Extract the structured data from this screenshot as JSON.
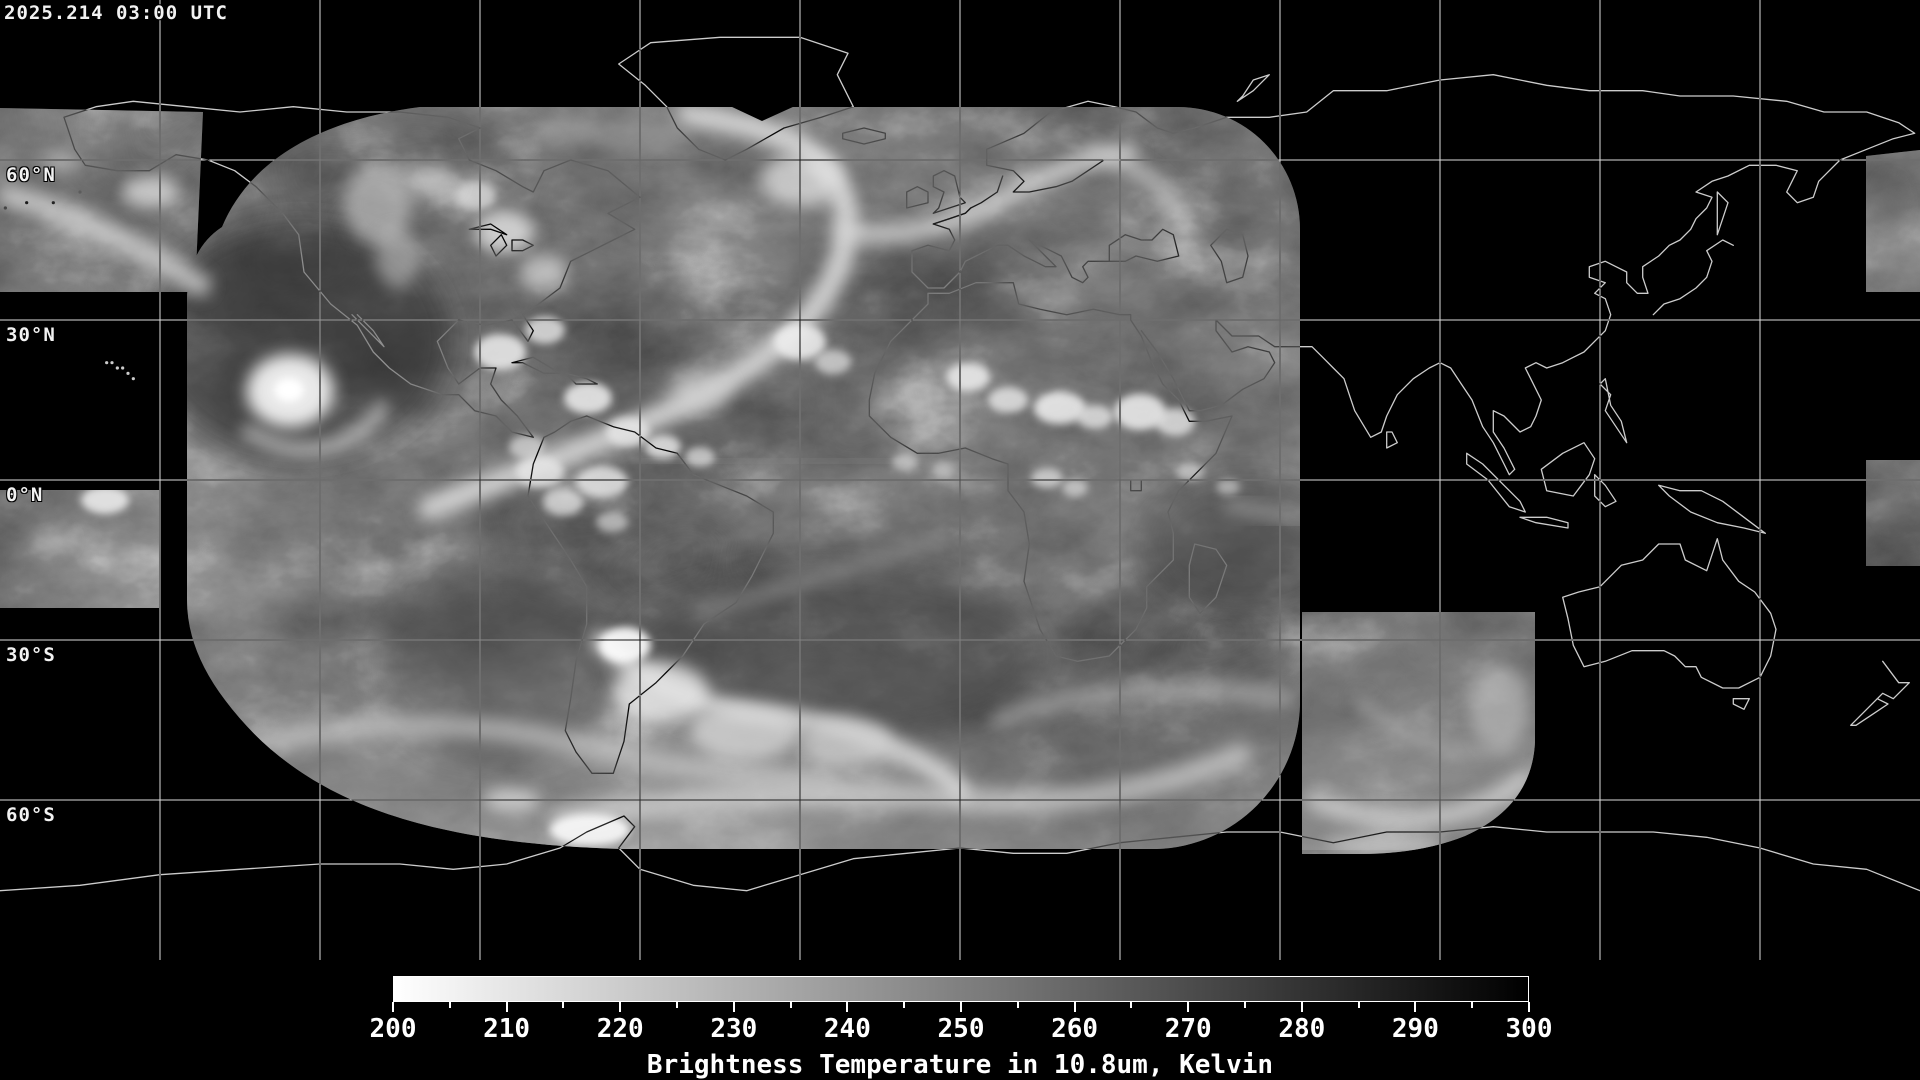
{
  "title_bar": {
    "timestamp": "2025.214 03:00 UTC"
  },
  "map": {
    "latitude_labels": [
      {
        "text": "60°N",
        "lat": 60
      },
      {
        "text": "30°N",
        "lat": 30
      },
      {
        "text": "0°N",
        "lat": 0
      },
      {
        "text": "30°S",
        "lat": -30
      },
      {
        "text": "60°S",
        "lat": -60
      }
    ],
    "grid_spacing_deg": 30,
    "colors": {
      "background": "#000000",
      "grid": "#dcdcdc",
      "coastline": "#cccccc",
      "label": "#f2f2f2"
    }
  },
  "colorbar": {
    "caption": "Brightness Temperature in 10.8um, Kelvin",
    "tick_labels": [
      200,
      210,
      220,
      230,
      240,
      250,
      260,
      270,
      280,
      290,
      300
    ],
    "minor_tick_step": 5,
    "range_min": 200,
    "range_max": 300,
    "gradient_start_color": "#ffffff",
    "gradient_end_color": "#000000"
  }
}
